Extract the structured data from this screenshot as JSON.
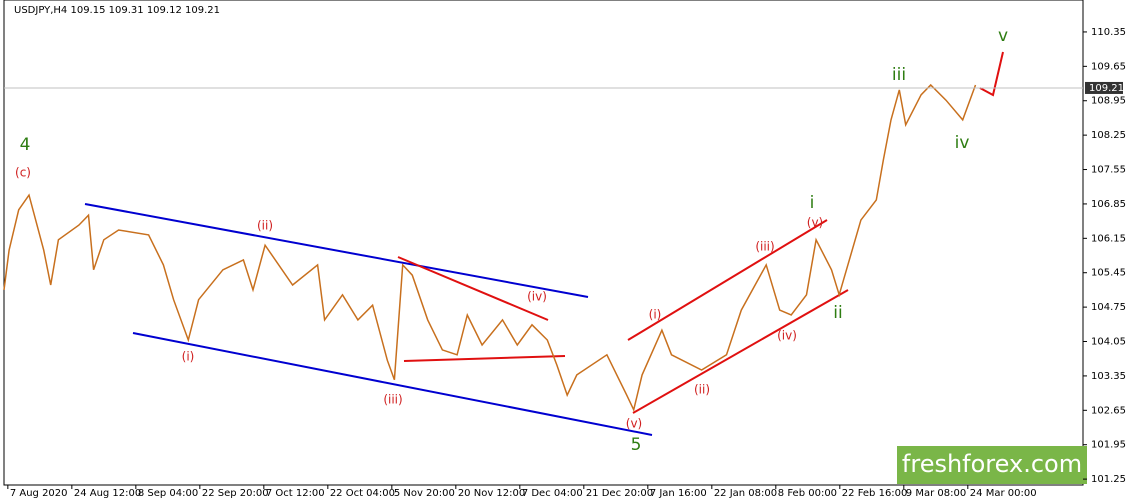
{
  "chart_data": {
    "type": "line",
    "title": "USDJPY,H4  109.15 109.31 109.12 109.21",
    "x": [
      -0.06,
      0.02,
      0.17,
      0.33,
      0.56,
      0.67,
      0.79,
      1.11,
      1.26,
      1.34,
      1.5,
      1.73,
      2.2,
      2.43,
      2.59,
      2.82,
      2.98,
      3.36,
      3.68,
      3.83,
      4.02,
      4.45,
      4.84,
      4.95,
      5.23,
      5.47,
      5.7,
      5.93,
      6.04,
      6.17,
      6.32,
      6.56,
      6.79,
      7.02,
      7.18,
      7.41,
      7.73,
      7.96,
      8.19,
      8.43,
      8.58,
      8.74,
      8.89,
      9.36,
      9.67,
      9.78,
      9.91,
      10.22,
      10.37,
      10.84,
      11.23,
      11.46,
      11.85,
      12.06,
      12.24,
      12.48,
      12.63,
      12.87,
      12.99,
      13.33,
      13.57,
      13.68,
      13.8,
      13.93,
      14.03,
      14.27,
      14.42,
      14.66,
      14.92,
      15.12
    ],
    "series": [
      {
        "name": "USDJPY",
        "color": "#c8701e",
        "values": [
          105.1,
          105.91,
          106.73,
          107.03,
          105.91,
          105.2,
          106.12,
          106.42,
          106.62,
          105.51,
          106.12,
          106.32,
          106.22,
          105.61,
          104.9,
          104.08,
          104.9,
          105.51,
          105.71,
          105.1,
          106.01,
          105.2,
          105.61,
          104.49,
          105.0,
          104.49,
          104.79,
          103.67,
          103.27,
          105.61,
          105.4,
          104.49,
          103.88,
          103.78,
          104.59,
          103.98,
          104.49,
          103.98,
          104.39,
          104.08,
          103.57,
          102.96,
          103.37,
          103.78,
          102.96,
          102.66,
          103.37,
          104.28,
          103.78,
          103.47,
          103.78,
          104.69,
          105.61,
          104.69,
          104.59,
          105.0,
          106.12,
          105.51,
          105.0,
          106.52,
          106.93,
          107.74,
          108.56,
          109.17,
          108.46,
          109.07,
          109.27,
          108.96,
          108.56,
          109.27
        ]
      }
    ],
    "xlim": [
      -0.06,
      16.8
    ],
    "xticks": [
      {
        "value": 0,
        "label": "7 Aug 2020"
      },
      {
        "value": 1,
        "label": "24 Aug 12:00"
      },
      {
        "value": 2,
        "label": "8 Sep 04:00"
      },
      {
        "value": 3,
        "label": "22 Sep 20:00"
      },
      {
        "value": 4,
        "label": "7 Oct 12:00"
      },
      {
        "value": 5,
        "label": "22 Oct 04:00"
      },
      {
        "value": 6,
        "label": "5 Nov 20:00"
      },
      {
        "value": 7,
        "label": "20 Nov 12:00"
      },
      {
        "value": 8,
        "label": "7 Dec 04:00"
      },
      {
        "value": 9,
        "label": "21 Dec 20:00"
      },
      {
        "value": 10,
        "label": "7 Jan 16:00"
      },
      {
        "value": 11,
        "label": "22 Jan 08:00"
      },
      {
        "value": 12,
        "label": "8 Feb 00:00"
      },
      {
        "value": 13,
        "label": "22 Feb 16:00"
      },
      {
        "value": 14,
        "label": "9 Mar 08:00"
      },
      {
        "value": 15,
        "label": "24 Mar 00:00"
      }
    ],
    "ylim": [
      101.13,
      111.0
    ],
    "yticks": [
      110.35,
      109.65,
      108.95,
      108.25,
      107.55,
      106.85,
      106.15,
      105.45,
      104.75,
      104.05,
      103.35,
      102.65,
      101.95,
      101.25
    ],
    "current_price": 109.21,
    "annotations": [
      "4",
      "(c)",
      "(ii)",
      "(i)",
      "(iii)",
      "(iv)",
      "(v)",
      "5",
      "(i)",
      "(ii)",
      "(iii)",
      "(iv)",
      "(v)",
      "i",
      "ii",
      "iii",
      "iv",
      "v"
    ],
    "watermark": "freshforex.com"
  }
}
